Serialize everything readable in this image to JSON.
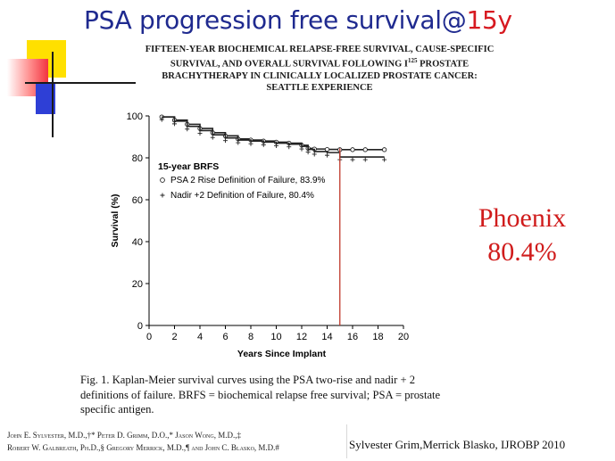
{
  "slide": {
    "title_main": "PSA progression free survival@",
    "title_accent": "15y",
    "phoenix_line1": "Phoenix",
    "phoenix_line2": "80.4%",
    "citation": "Sylvester  Grim,Merrick  Blasko, IJROBP 2010",
    "colors": {
      "title": "#1f2a8f",
      "accent": "#d71920",
      "phoenix": "#d01c1c"
    }
  },
  "paper": {
    "title_line1": "FIFTEEN-YEAR BIOCHEMICAL RELAPSE-FREE SURVIVAL, CAUSE-SPECIFIC",
    "title_line2_pre": "SURVIVAL, AND OVERALL SURVIVAL FOLLOWING I",
    "title_line2_sup": "125",
    "title_line2_post": " PROSTATE",
    "title_line3": "BRACHYTHERAPY IN CLINICALLY LOCALIZED PROSTATE CANCER:",
    "title_line4": "SEATTLE EXPERIENCE",
    "caption": "Fig. 1.  Kaplan-Meier survival curves using the PSA two-rise and nadir + 2 definitions of failure. BRFS = biochemical relapse free survival; PSA = prostate specific antigen.",
    "authors_line1": "John E. Sylvester, M.D.,†* Peter D. Grimm, D.O.,* Jason Wong, M.D.,‡",
    "authors_line2": "Robert W. Galbreath, Ph.D.,§ Gregory Merrick, M.D.,¶ and John C. Blasko, M.D.#"
  },
  "chart_data": {
    "type": "line",
    "xlabel": "Years Since Implant",
    "ylabel": "Survival (%)",
    "xlim": [
      0,
      20
    ],
    "ylim": [
      0,
      100
    ],
    "xticks": [
      0,
      2,
      4,
      6,
      8,
      10,
      12,
      14,
      16,
      18,
      20
    ],
    "yticks": [
      0,
      20,
      40,
      60,
      80,
      100
    ],
    "legend_title": "15-year BRFS",
    "legend_position": "center-left",
    "marker_line_x": 15,
    "marker_line_color": "#c0392b",
    "series": [
      {
        "name": "PSA 2 Rise Definition of Failure, 83.9%",
        "marker": "circle",
        "x": [
          1,
          2,
          3,
          4,
          5,
          6,
          7,
          8,
          9,
          10,
          11,
          12,
          12.5,
          13,
          14,
          15,
          16,
          17,
          18.5
        ],
        "y": [
          99.5,
          98,
          96,
          94,
          92,
          90.5,
          89,
          88.5,
          88,
          87.5,
          87,
          86,
          84.5,
          84.2,
          84,
          83.9,
          83.9,
          83.9,
          83.9
        ]
      },
      {
        "name": "Nadir +2 Definition of Failure, 80.4%",
        "marker": "plus",
        "x": [
          1,
          2,
          3,
          4,
          5,
          6,
          7,
          8,
          9,
          10,
          11,
          12,
          12.5,
          13,
          14,
          15,
          16,
          17,
          18.5
        ],
        "y": [
          99.5,
          97.5,
          95,
          93,
          91,
          89.5,
          88.5,
          88,
          87.5,
          87,
          86.5,
          85.5,
          84,
          83,
          82.5,
          80.4,
          80.4,
          80.4,
          80.4
        ]
      }
    ]
  }
}
